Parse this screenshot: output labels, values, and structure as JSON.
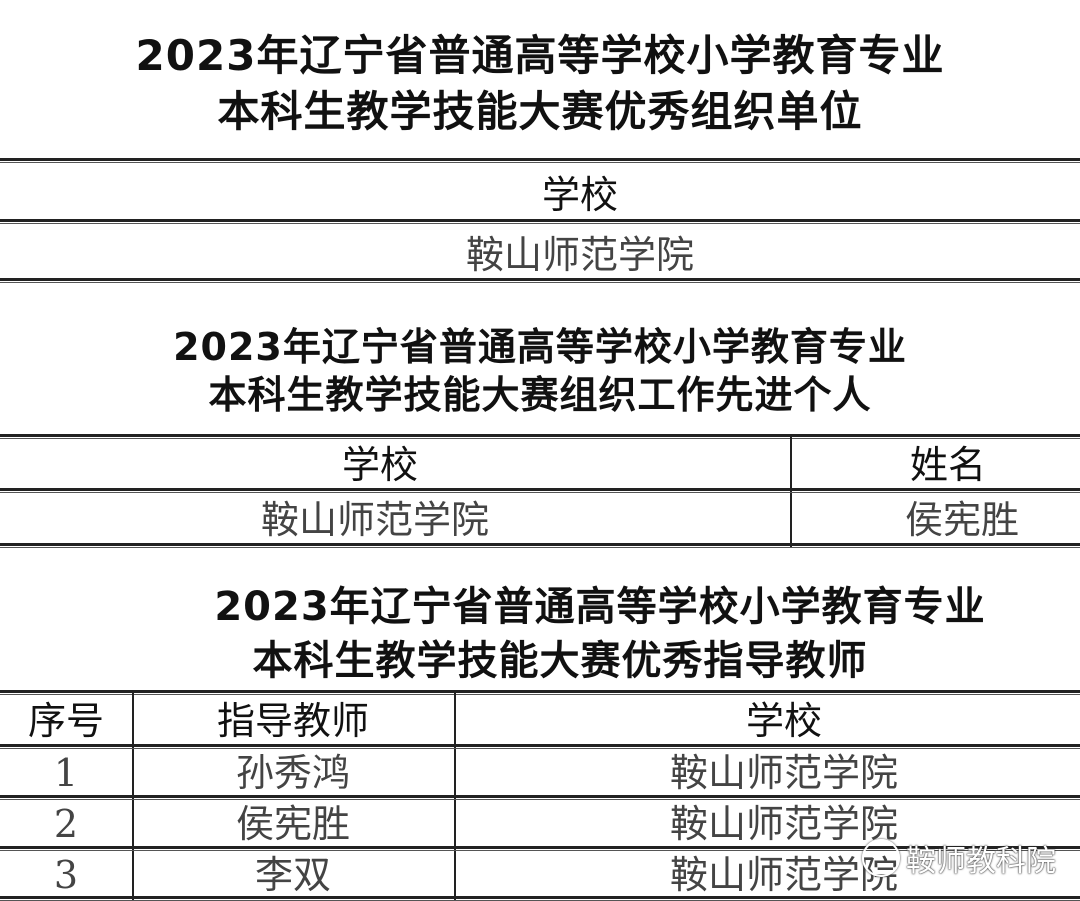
{
  "section1": {
    "title_line1": "2023年辽宁省普通高等学校小学教育专业",
    "title_line2": "本科生教学技能大赛优秀组织单位",
    "header": "学校",
    "rows": [
      "鞍山师范学院"
    ]
  },
  "section2": {
    "title_line1": "2023年辽宁省普通高等学校小学教育专业",
    "title_line2": "本科生教学技能大赛组织工作先进个人",
    "headers": [
      "学校",
      "姓名"
    ],
    "rows": [
      [
        "鞍山师范学院",
        "侯宪胜"
      ]
    ]
  },
  "section3": {
    "title_line1": "2023年辽宁省普通高等学校小学教育专业",
    "title_line2": "本科生教学技能大赛优秀指导教师",
    "headers": [
      "序号",
      "指导教师",
      "学校"
    ],
    "rows": [
      [
        "1",
        "孙秀鸿",
        "鞍山师范学院"
      ],
      [
        "2",
        "侯宪胜",
        "鞍山师范学院"
      ],
      [
        "3",
        "李双",
        "鞍山师范学院"
      ]
    ]
  },
  "watermark": {
    "text": "鞍师教科院"
  }
}
